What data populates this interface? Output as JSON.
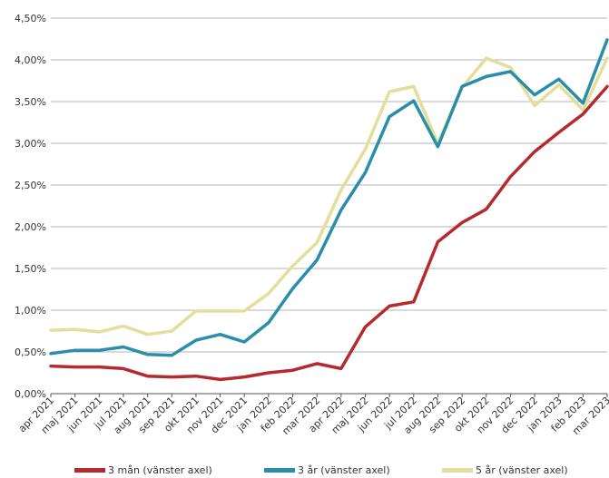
{
  "chart_data": {
    "type": "line",
    "categories": [
      "apr 2021",
      "maj 2021",
      "jun 2021",
      "jul 2021",
      "aug 2021",
      "sep 2021",
      "okt 2021",
      "nov 2021",
      "dec 2021",
      "jan 2022",
      "feb 2022",
      "mar 2022",
      "apr 2022",
      "maj 2022",
      "jun 2022",
      "jul 2022",
      "aug 2022",
      "sep 2022",
      "okt 2022",
      "nov 2022",
      "dec 2022",
      "jan 2023",
      "feb 2023",
      "mar 2023"
    ],
    "series": [
      {
        "name": "3 mån (vänster axel)",
        "color": "#b52a2e",
        "values": [
          0.33,
          0.32,
          0.32,
          0.3,
          0.21,
          0.2,
          0.21,
          0.17,
          0.2,
          0.25,
          0.28,
          0.36,
          0.3,
          0.8,
          1.05,
          1.1,
          1.82,
          2.05,
          2.21,
          2.6,
          2.9,
          3.13,
          3.35,
          3.68
        ]
      },
      {
        "name": "3 år (vänster axel)",
        "color": "#2a8eab",
        "values": [
          0.48,
          0.52,
          0.52,
          0.56,
          0.47,
          0.46,
          0.64,
          0.71,
          0.62,
          0.85,
          1.26,
          1.6,
          2.2,
          2.65,
          3.32,
          3.51,
          2.96,
          3.68,
          3.8,
          3.86,
          3.58,
          3.77,
          3.48,
          4.24
        ]
      },
      {
        "name": "5 år (vänster axel)",
        "color": "#e3df9b",
        "values": [
          0.76,
          0.77,
          0.74,
          0.81,
          0.71,
          0.75,
          0.99,
          0.99,
          0.99,
          1.2,
          1.53,
          1.81,
          2.44,
          2.93,
          3.62,
          3.68,
          3.0,
          3.67,
          4.02,
          3.91,
          3.45,
          3.7,
          3.4,
          4.02
        ]
      }
    ],
    "yticks": [
      "0,00%",
      "0,50%",
      "1,00%",
      "1,50%",
      "2,00%",
      "2,50%",
      "3,00%",
      "3,50%",
      "4,00%",
      "4,50%"
    ],
    "ylim": [
      0,
      4.5
    ],
    "grid": true,
    "legend_position": "bottom"
  }
}
